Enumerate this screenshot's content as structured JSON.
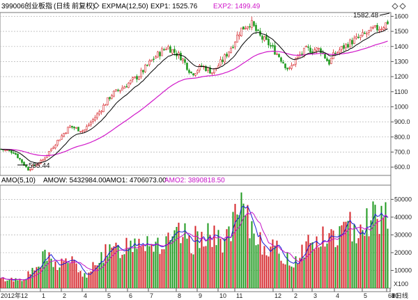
{
  "header": {
    "code": "399006",
    "name": "创业板指",
    "period": "(日线 前复权)",
    "indicator": "EXPMA(12,50)",
    "exp1_label": "EXP1: 1525.76",
    "exp2_label": "EXP2: 1499.49"
  },
  "lower_header": {
    "indicator": "AMO(5,10)",
    "amow_label": "AMOW: 5432984.00",
    "amo1_label": "AMO1: 4706073.00",
    "amo2_label": "AMO2: 3890818.50"
  },
  "annotations": {
    "high_label": "1582.48",
    "low_label": "585.44"
  },
  "x_axis": {
    "labels": [
      "2012年12",
      "1",
      "2",
      "4",
      "5",
      "6",
      "7",
      "8",
      "9",
      "10",
      "11",
      "12",
      "2",
      "3",
      "4",
      "5",
      "6",
      "7",
      "8",
      "9",
      "10",
      "日线"
    ],
    "unit_label": "X100"
  },
  "colors": {
    "up": "#d6262b",
    "down": "#1f9a1f",
    "exp1": "#000000",
    "exp2": "#d016c9",
    "amo1": "#1a1ad6",
    "amo2": "#c513c7",
    "grid": "#bdbdbd"
  },
  "icons": [
    "diamond-icon",
    "scroll-left-icon",
    "scroll-right-icon"
  ],
  "chart_data": [
    {
      "type": "candlestick",
      "title": "399006 创业板指(日线 前复权)",
      "y_ticks": [
        600,
        700,
        800,
        900,
        1000,
        1100,
        1200,
        1300,
        1400,
        1500,
        1600
      ],
      "y_tick_labels": [
        "600.0",
        "700.0",
        "800.0",
        "900.0",
        "1000",
        "1100",
        "1200",
        "1300",
        "1400",
        "1500",
        "1600"
      ],
      "ylim": [
        545,
        1625
      ],
      "series": [
        {
          "name": "EXP1",
          "value_last": 1525.76
        },
        {
          "name": "EXP2",
          "value_last": 1499.49
        }
      ],
      "trend_points": [
        [
          0,
          720
        ],
        [
          20,
          700
        ],
        [
          40,
          585
        ],
        [
          60,
          640
        ],
        [
          80,
          760
        ],
        [
          100,
          870
        ],
        [
          120,
          840
        ],
        [
          140,
          950
        ],
        [
          160,
          1080
        ],
        [
          180,
          1140
        ],
        [
          200,
          1210
        ],
        [
          220,
          1320
        ],
        [
          240,
          1400
        ],
        [
          260,
          1330
        ],
        [
          275,
          1220
        ],
        [
          290,
          1270
        ],
        [
          305,
          1230
        ],
        [
          320,
          1310
        ],
        [
          335,
          1420
        ],
        [
          345,
          1510
        ],
        [
          360,
          1560
        ],
        [
          372,
          1470
        ],
        [
          385,
          1420
        ],
        [
          400,
          1340
        ],
        [
          415,
          1240
        ],
        [
          425,
          1320
        ],
        [
          440,
          1380
        ],
        [
          460,
          1380
        ],
        [
          472,
          1290
        ],
        [
          480,
          1350
        ],
        [
          500,
          1420
        ],
        [
          520,
          1470
        ],
        [
          535,
          1510
        ],
        [
          548,
          1530
        ],
        [
          560,
          1575
        ]
      ],
      "extremes": {
        "high": 1582.48,
        "low": 585.44
      }
    },
    {
      "type": "bar",
      "title": "AMO(5,10)",
      "y_ticks": [
        10000,
        20000,
        30000,
        40000,
        50000
      ],
      "y_tick_labels": [
        "10000",
        "20000",
        "30000",
        "40000",
        "50000"
      ],
      "ylim": [
        0,
        58000
      ],
      "unit": "X100",
      "series": [
        {
          "name": "AMOW",
          "value_last": 5432984.0
        },
        {
          "name": "AMO1",
          "value_last": 4706073.0
        },
        {
          "name": "AMO2",
          "value_last": 3890818.5
        }
      ],
      "trend_points": [
        [
          0,
          5000
        ],
        [
          30,
          5000
        ],
        [
          50,
          10000
        ],
        [
          65,
          18000
        ],
        [
          80,
          13000
        ],
        [
          100,
          16000
        ],
        [
          115,
          10000
        ],
        [
          125,
          5000
        ],
        [
          140,
          18000
        ],
        [
          160,
          20000
        ],
        [
          180,
          24000
        ],
        [
          200,
          29000
        ],
        [
          220,
          26000
        ],
        [
          240,
          24000
        ],
        [
          260,
          30000
        ],
        [
          275,
          25000
        ],
        [
          295,
          33000
        ],
        [
          310,
          26000
        ],
        [
          330,
          30000
        ],
        [
          345,
          44000
        ],
        [
          360,
          33000
        ],
        [
          380,
          25000
        ],
        [
          400,
          20000
        ],
        [
          420,
          14000
        ],
        [
          440,
          25000
        ],
        [
          460,
          27000
        ],
        [
          480,
          29000
        ],
        [
          500,
          33000
        ],
        [
          520,
          38000
        ],
        [
          540,
          41000
        ],
        [
          560,
          45000
        ]
      ]
    }
  ]
}
